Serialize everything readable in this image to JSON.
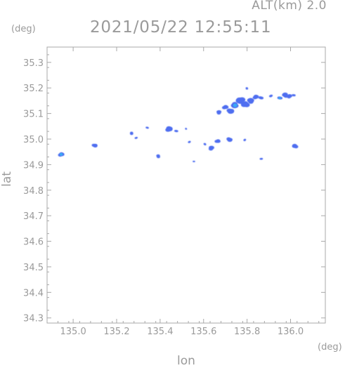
{
  "header": {
    "altitude_label": "ALT(km)  2.0",
    "timestamp": "2021/05/22  12:55:11"
  },
  "chart_data": {
    "type": "scatter",
    "title": "2021/05/22  12:55:11",
    "xlabel": "lon",
    "ylabel": "lat",
    "x_unit": "(deg)",
    "y_unit": "(deg)",
    "xlim": [
      134.88,
      136.16
    ],
    "ylim": [
      34.28,
      35.36
    ],
    "x_ticks": [
      "135.0",
      "135.2",
      "135.4",
      "135.6",
      "135.8",
      "136.0"
    ],
    "y_ticks": [
      "34.3",
      "34.4",
      "34.5",
      "34.6",
      "34.7",
      "34.8",
      "34.9",
      "35.0",
      "35.1",
      "35.2",
      "35.3"
    ],
    "grid": false,
    "colors": {
      "weak": "#4f6ef0",
      "moderate": "#3aa8f5",
      "axis": "#a8a8a8",
      "text": "#9a9a9a"
    },
    "series": [
      {
        "points": [
          {
            "x": 134.945,
            "y": 34.94,
            "level": "moderate",
            "size": 1.0
          },
          {
            "x": 135.1,
            "y": 34.975,
            "level": "weak",
            "size": 0.9
          },
          {
            "x": 135.27,
            "y": 35.022,
            "level": "weak",
            "size": 0.7
          },
          {
            "x": 135.29,
            "y": 35.004,
            "level": "weak",
            "size": 0.5
          },
          {
            "x": 135.34,
            "y": 35.044,
            "level": "weak",
            "size": 0.5
          },
          {
            "x": 135.39,
            "y": 34.933,
            "level": "weak",
            "size": 0.8
          },
          {
            "x": 135.44,
            "y": 35.04,
            "level": "weak",
            "size": 1.2
          },
          {
            "x": 135.475,
            "y": 35.032,
            "level": "weak",
            "size": 0.6
          },
          {
            "x": 135.52,
            "y": 35.04,
            "level": "weak",
            "size": 0.4
          },
          {
            "x": 135.535,
            "y": 34.988,
            "level": "weak",
            "size": 0.5
          },
          {
            "x": 135.555,
            "y": 34.912,
            "level": "weak",
            "size": 0.4
          },
          {
            "x": 135.605,
            "y": 34.98,
            "level": "weak",
            "size": 0.5
          },
          {
            "x": 135.635,
            "y": 34.965,
            "level": "weak",
            "size": 1.0
          },
          {
            "x": 135.665,
            "y": 34.992,
            "level": "weak",
            "size": 0.9
          },
          {
            "x": 135.72,
            "y": 34.998,
            "level": "weak",
            "size": 1.0
          },
          {
            "x": 135.79,
            "y": 34.996,
            "level": "weak",
            "size": 0.5
          },
          {
            "x": 135.865,
            "y": 34.922,
            "level": "weak",
            "size": 0.5
          },
          {
            "x": 136.02,
            "y": 34.972,
            "level": "weak",
            "size": 1.0
          },
          {
            "x": 135.67,
            "y": 35.105,
            "level": "weak",
            "size": 0.9
          },
          {
            "x": 135.7,
            "y": 35.125,
            "level": "weak",
            "size": 1.0
          },
          {
            "x": 135.725,
            "y": 35.11,
            "level": "weak",
            "size": 1.2
          },
          {
            "x": 135.745,
            "y": 35.132,
            "level": "moderate",
            "size": 1.3
          },
          {
            "x": 135.77,
            "y": 35.15,
            "level": "weak",
            "size": 1.5
          },
          {
            "x": 135.79,
            "y": 35.135,
            "level": "weak",
            "size": 1.4
          },
          {
            "x": 135.815,
            "y": 35.15,
            "level": "weak",
            "size": 1.2
          },
          {
            "x": 135.84,
            "y": 35.165,
            "level": "weak",
            "size": 1.0
          },
          {
            "x": 135.865,
            "y": 35.162,
            "level": "weak",
            "size": 0.8
          },
          {
            "x": 135.8,
            "y": 35.198,
            "level": "weak",
            "size": 0.5
          },
          {
            "x": 135.91,
            "y": 35.168,
            "level": "weak",
            "size": 0.6
          },
          {
            "x": 135.95,
            "y": 35.16,
            "level": "moderate",
            "size": 0.8
          },
          {
            "x": 135.975,
            "y": 35.172,
            "level": "weak",
            "size": 1.1
          },
          {
            "x": 135.995,
            "y": 35.168,
            "level": "weak",
            "size": 0.9
          },
          {
            "x": 136.015,
            "y": 35.172,
            "level": "weak",
            "size": 0.6
          }
        ]
      }
    ]
  }
}
